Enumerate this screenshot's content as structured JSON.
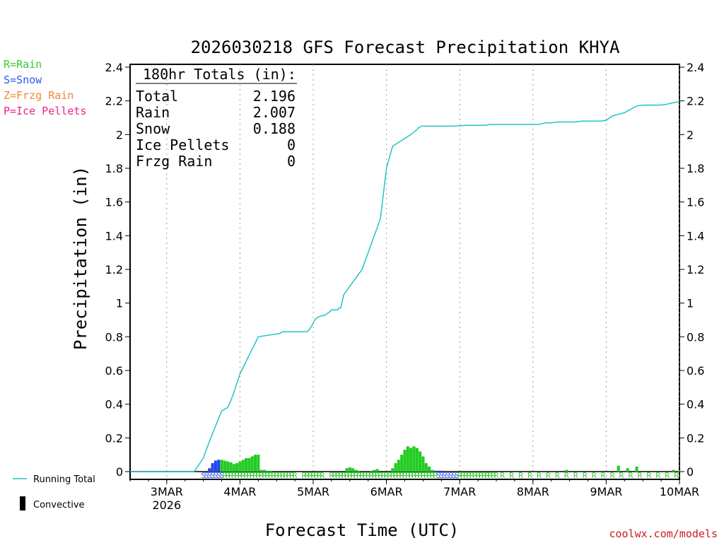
{
  "chart_data": {
    "type": "line",
    "title": "2026030218 GFS Forecast Precipitation KHYA",
    "xlabel": "Forecast Time (UTC)",
    "ylabel": "Precipitation (in)",
    "credit": "coolwx.com/models",
    "ylim": [
      0,
      2.4
    ],
    "yticks": [
      "0",
      "0.2",
      "0.4",
      "0.6",
      "0.8",
      "1",
      "1.2",
      "1.4",
      "1.6",
      "1.8",
      "2",
      "2.2",
      "2.4"
    ],
    "xlim_hours": [
      -6,
      174
    ],
    "x_ticks": [
      {
        "hour": 6,
        "label": "3MAR",
        "sublabel": "2026"
      },
      {
        "hour": 30,
        "label": "4MAR",
        "sublabel": ""
      },
      {
        "hour": 54,
        "label": "5MAR",
        "sublabel": ""
      },
      {
        "hour": 78,
        "label": "6MAR",
        "sublabel": ""
      },
      {
        "hour": 102,
        "label": "7MAR",
        "sublabel": ""
      },
      {
        "hour": 126,
        "label": "8MAR",
        "sublabel": ""
      },
      {
        "hour": 150,
        "label": "9MAR",
        "sublabel": ""
      },
      {
        "hour": 174,
        "label": "10MAR",
        "sublabel": ""
      }
    ],
    "totals_box": {
      "header": "180hr Totals (in):",
      "rows": [
        {
          "label": "Total",
          "value": "2.196"
        },
        {
          "label": "Rain",
          "value": "2.007"
        },
        {
          "label": "Snow",
          "value": "0.188"
        },
        {
          "label": "Ice Pellets",
          "value": "0"
        },
        {
          "label": "Frzg Rain",
          "value": "0"
        }
      ]
    },
    "type_legend": [
      {
        "text": "R=Rain",
        "color": "#33cc33"
      },
      {
        "text": "S=Snow",
        "color": "#3355ee"
      },
      {
        "text": "Z=Frzg Rain",
        "color": "#ee8833"
      },
      {
        "text": "P=Ice Pellets",
        "color": "#ee2288"
      }
    ],
    "series_legend": [
      {
        "name": "Running Total",
        "color": "#22c4c4",
        "kind": "line"
      },
      {
        "name": "Convective",
        "color": "#000000",
        "kind": "bar"
      }
    ],
    "running_total": {
      "x": [
        -6,
        15,
        18,
        20,
        22,
        24,
        26,
        27,
        28,
        30,
        36,
        43,
        44,
        45,
        46,
        48,
        52,
        53,
        54,
        54.5,
        55,
        56,
        58,
        59.5,
        60,
        60.5,
        61,
        61.5,
        62,
        62.5,
        63,
        64,
        70,
        76,
        78,
        80,
        86,
        88,
        88.5,
        89,
        89.5,
        90,
        90.5,
        91,
        91.5,
        92,
        93,
        94,
        95,
        96,
        98,
        100,
        104,
        106,
        108,
        110,
        112,
        114
      ],
      "y": [
        0,
        0,
        0.08,
        0.18,
        0.27,
        0.36,
        0.38,
        0.42,
        0.47,
        0.58,
        0.8,
        0.82,
        0.83,
        0.83,
        0.83,
        0.83,
        0.83,
        0.85,
        0.88,
        0.9,
        0.91,
        0.92,
        0.93,
        0.95,
        0.96,
        0.96,
        0.96,
        0.96,
        0.96,
        0.97,
        0.97,
        1.05,
        1.2,
        1.5,
        1.8,
        1.93,
        2.0,
        2.03,
        2.04,
        2.045,
        2.05,
        2.05,
        2.05,
        2.05,
        2.05,
        2.05,
        2.05,
        2.05,
        2.05,
        2.05,
        2.05,
        2.05,
        2.055,
        2.055,
        2.055,
        2.055,
        2.06,
        2.06
      ],
      "color": "#22c4c4"
    },
    "running_total_tail": {
      "x": [
        114,
        122,
        124,
        126,
        128,
        130,
        132,
        134,
        136,
        138,
        140,
        142,
        144,
        146,
        148,
        150,
        152,
        154,
        156,
        158,
        160,
        162,
        164,
        166,
        168,
        170,
        172,
        174,
        176,
        178
      ],
      "y": [
        2.06,
        2.06,
        2.06,
        2.06,
        2.06,
        2.07,
        2.07,
        2.075,
        2.075,
        2.075,
        2.075,
        2.08,
        2.08,
        2.08,
        2.08,
        2.085,
        2.11,
        2.12,
        2.13,
        2.15,
        2.17,
        2.175,
        2.175,
        2.175,
        2.175,
        2.18,
        2.19,
        2.195,
        2.196,
        2.196
      ]
    },
    "bars": {
      "x": [
        20,
        21,
        22,
        23,
        24,
        25,
        26,
        27,
        28,
        29,
        30,
        31,
        32,
        33,
        34,
        35,
        36,
        37,
        38,
        39,
        40,
        65,
        66,
        67,
        68,
        69,
        73,
        74,
        75,
        80,
        81,
        82,
        83,
        84,
        85,
        86,
        87,
        88,
        89,
        90,
        91,
        92,
        93,
        94,
        95,
        96,
        137,
        154,
        157,
        160,
        172,
        174
      ],
      "values": [
        0.02,
        0.05,
        0.065,
        0.07,
        0.07,
        0.065,
        0.06,
        0.055,
        0.045,
        0.05,
        0.06,
        0.07,
        0.08,
        0.08,
        0.09,
        0.1,
        0.1,
        0.01,
        0.01,
        0.005,
        0.005,
        0.02,
        0.025,
        0.02,
        0.01,
        0.005,
        0.005,
        0.01,
        0.015,
        0.02,
        0.05,
        0.07,
        0.1,
        0.13,
        0.15,
        0.14,
        0.15,
        0.14,
        0.12,
        0.09,
        0.05,
        0.03,
        0.01,
        0.005,
        0.005,
        0.005,
        0.01,
        0.035,
        0.02,
        0.03,
        0.01,
        0.005
      ],
      "colors": [
        "#2244ee",
        "#2244ee",
        "#2244ee",
        "#2244ee",
        "#22cc22",
        "#22cc22",
        "#22cc22",
        "#22cc22",
        "#22cc22",
        "#22cc22",
        "#22cc22",
        "#22cc22",
        "#22cc22",
        "#22cc22",
        "#22cc22",
        "#22cc22",
        "#22cc22",
        "#22cc22",
        "#22cc22",
        "#22cc22",
        "#22cc22",
        "#22cc22",
        "#22cc22",
        "#22cc22",
        "#22cc22",
        "#22cc22",
        "#22cc22",
        "#22cc22",
        "#22cc22",
        "#22cc22",
        "#22cc22",
        "#22cc22",
        "#22cc22",
        "#22cc22",
        "#22cc22",
        "#22cc22",
        "#22cc22",
        "#22cc22",
        "#22cc22",
        "#22cc22",
        "#22cc22",
        "#22cc22",
        "#22cc22",
        "#2244ee",
        "#2244ee",
        "#2244ee",
        "#22cc22",
        "#22cc22",
        "#22cc22",
        "#22cc22",
        "#22cc22",
        "#22cc22"
      ]
    },
    "ptype_markers": {
      "snow_hours": [
        18,
        19,
        20,
        21,
        22,
        23,
        24,
        95,
        96,
        97,
        98,
        99,
        100,
        101
      ],
      "rain_hours": [
        25,
        26,
        27,
        28,
        29,
        30,
        31,
        32,
        33,
        34,
        35,
        36,
        37,
        38,
        39,
        40,
        41,
        42,
        43,
        44,
        45,
        46,
        47,
        48,
        51,
        52,
        53,
        54,
        55,
        56,
        57,
        60,
        61,
        62,
        63,
        64,
        65,
        66,
        67,
        68,
        69,
        70,
        71,
        72,
        73,
        74,
        75,
        76,
        77,
        78,
        79,
        80,
        81,
        82,
        83,
        84,
        85,
        86,
        87,
        88,
        89,
        90,
        91,
        92,
        93,
        94,
        102,
        103,
        104,
        105,
        106,
        107,
        108,
        109,
        110,
        111,
        112,
        113,
        114,
        116,
        119,
        122,
        125,
        128,
        131,
        134,
        137,
        140,
        143,
        146,
        149,
        152,
        155,
        158,
        161,
        164,
        167,
        170,
        173,
        176
      ],
      "snow_symbol": "S",
      "rain_symbol": "R"
    }
  }
}
